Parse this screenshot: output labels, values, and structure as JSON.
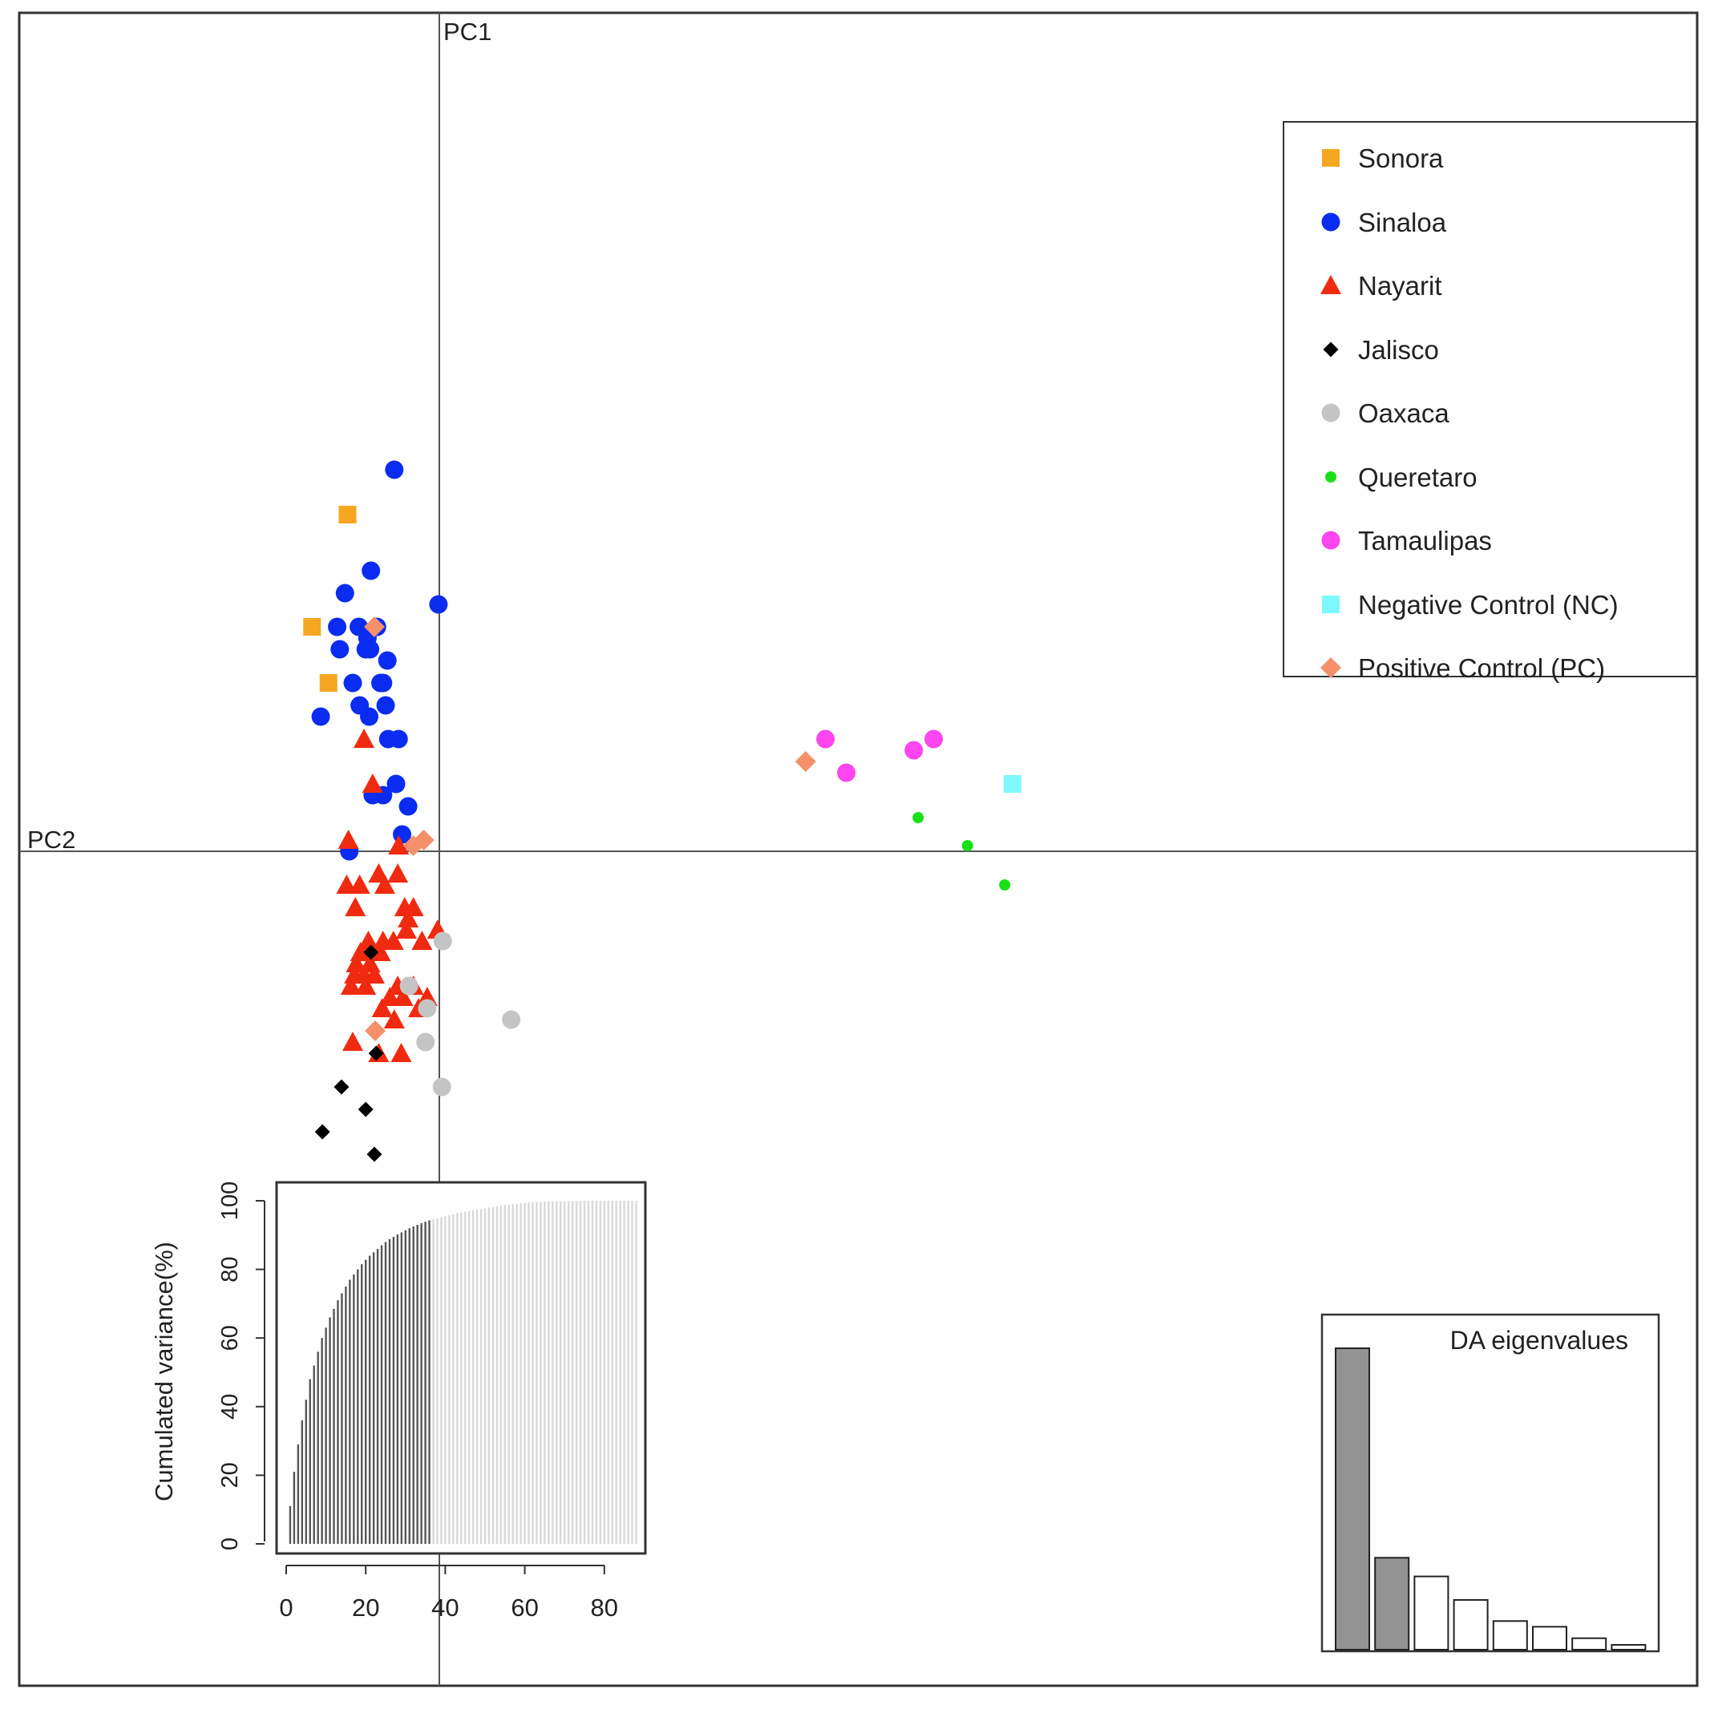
{
  "chart_data": [
    {
      "type": "scatter",
      "title": "",
      "axis_labels": {
        "vertical": "PC1",
        "horizontal": "PC2"
      },
      "legend_position": "top-right",
      "series": [
        {
          "name": "Sonora",
          "color": "#f5a623",
          "marker": "square",
          "points": [
            [
              -10.6,
              3.0
            ],
            [
              -14.7,
              2.0
            ],
            [
              -12.8,
              1.5
            ]
          ]
        },
        {
          "name": "Sinaloa",
          "color": "#0a2cf0",
          "marker": "circle",
          "points": [
            [
              -5.2,
              3.4
            ],
            [
              -7.9,
              2.5
            ],
            [
              -10.9,
              2.3
            ],
            [
              -11.8,
              2.0
            ],
            [
              -9.3,
              2.0
            ],
            [
              -8.5,
              1.8
            ],
            [
              -8.3,
              1.9
            ],
            [
              -7.2,
              2.0
            ],
            [
              -8.0,
              1.8
            ],
            [
              -6.0,
              1.7
            ],
            [
              -6.5,
              1.5
            ],
            [
              -6.8,
              1.5
            ],
            [
              -11.5,
              1.8
            ],
            [
              -10.0,
              1.5
            ],
            [
              -9.2,
              1.3
            ],
            [
              -8.1,
              1.2
            ],
            [
              -6.2,
              1.3
            ],
            [
              -5.9,
              1.0
            ],
            [
              -4.7,
              1.0
            ],
            [
              -13.7,
              1.2
            ],
            [
              -5.0,
              0.6
            ],
            [
              -6.5,
              0.5
            ],
            [
              -7.7,
              0.5
            ],
            [
              -3.6,
              0.4
            ],
            [
              -4.3,
              0.15
            ],
            [
              -0.1,
              2.2
            ],
            [
              -10.4,
              0.0
            ]
          ]
        },
        {
          "name": "Nayarit",
          "color": "#f02a10",
          "marker": "triangle",
          "points": [
            [
              -8.7,
              1.0
            ],
            [
              -7.7,
              0.6
            ],
            [
              -10.5,
              0.1
            ],
            [
              -10.7,
              -0.3
            ],
            [
              -9.2,
              -0.3
            ],
            [
              -7.0,
              -0.2
            ],
            [
              -6.3,
              -0.3
            ],
            [
              -4.7,
              0.05
            ],
            [
              -4.8,
              -0.2
            ],
            [
              -3.8,
              -0.7
            ],
            [
              -4.0,
              -0.5
            ],
            [
              -9.7,
              -0.5
            ],
            [
              -9.1,
              -0.9
            ],
            [
              -8.2,
              -0.8
            ],
            [
              -6.5,
              -0.8
            ],
            [
              -5.3,
              -0.8
            ],
            [
              -2.0,
              -0.8
            ],
            [
              -3.0,
              -0.5
            ],
            [
              -3.6,
              -0.6
            ],
            [
              -6.8,
              -0.9
            ],
            [
              -7.5,
              -1.1
            ],
            [
              -8.0,
              -1.0
            ],
            [
              -8.7,
              -1.1
            ],
            [
              -9.6,
              -1.0
            ],
            [
              -9.8,
              -1.1
            ],
            [
              -10.2,
              -1.2
            ],
            [
              -8.5,
              -1.2
            ],
            [
              -6.6,
              -1.4
            ],
            [
              -5.7,
              -1.3
            ],
            [
              -4.2,
              -1.3
            ],
            [
              -3.0,
              -1.2
            ],
            [
              -2.4,
              -1.4
            ],
            [
              -0.2,
              -0.7
            ],
            [
              -5.2,
              -1.5
            ],
            [
              -1.4,
              -1.3
            ],
            [
              -10.0,
              -1.7
            ],
            [
              -7.0,
              -1.8
            ],
            [
              -4.4,
              -1.8
            ],
            [
              -4.8,
              -1.2
            ]
          ]
        },
        {
          "name": "Jalisco",
          "color": "#000000",
          "marker": "diamond",
          "points": [
            [
              -7.9,
              -0.9
            ],
            [
              -7.3,
              -1.8
            ],
            [
              -11.3,
              -2.1
            ],
            [
              -8.5,
              -2.3
            ],
            [
              -13.5,
              -2.5
            ],
            [
              -7.5,
              -2.7
            ]
          ]
        },
        {
          "name": "Oaxaca",
          "color": "#c4c4c4",
          "marker": "circle",
          "points": [
            [
              0.4,
              -0.8
            ],
            [
              -3.5,
              -1.2
            ],
            [
              -1.4,
              -1.4
            ],
            [
              -1.6,
              -1.7
            ],
            [
              8.3,
              -1.5
            ],
            [
              0.3,
              -2.1
            ]
          ]
        },
        {
          "name": "Queretaro",
          "color": "#18e018",
          "marker": "small-circle",
          "points": [
            [
              55.3,
              0.3
            ],
            [
              61.0,
              0.05
            ],
            [
              65.3,
              -0.3
            ]
          ]
        },
        {
          "name": "Tamaulipas",
          "color": "#ff45ee",
          "marker": "circle",
          "points": [
            [
              44.6,
              1.0
            ],
            [
              47.0,
              0.7
            ],
            [
              54.8,
              0.9
            ],
            [
              57.1,
              1.0
            ]
          ]
        },
        {
          "name": "Negative Control (NC)",
          "color": "#7ff7ff",
          "marker": "square",
          "points": [
            [
              66.2,
              0.6
            ]
          ]
        },
        {
          "name": "Positive Control (PC)",
          "color": "#f5906a",
          "marker": "diamond",
          "points": [
            [
              -7.5,
              2.0
            ],
            [
              -3.0,
              0.05
            ],
            [
              -1.8,
              0.1
            ],
            [
              42.3,
              0.8
            ],
            [
              -7.4,
              -1.6
            ]
          ]
        }
      ]
    },
    {
      "type": "bar",
      "title": "",
      "inset": "bottom-left",
      "xlabel": "",
      "ylabel": "Cumulated variance(%)",
      "xlim": [
        0,
        88
      ],
      "ylim": [
        0,
        100
      ],
      "xticks": [
        "0",
        "20",
        "40",
        "60",
        "80"
      ],
      "yticks": [
        "0",
        "20",
        "40",
        "60",
        "80",
        "100"
      ],
      "retained_components": 36,
      "total_components": 88,
      "retained_color": "#555555",
      "discarded_color": "#d9d9d9",
      "values": [
        11,
        21,
        29,
        36,
        42,
        48,
        52,
        56,
        60,
        63,
        66,
        68.5,
        71,
        73,
        75,
        77,
        78.5,
        80,
        81.5,
        82.8,
        84,
        85,
        86,
        87,
        88,
        88.8,
        89.5,
        90.2,
        90.8,
        91.4,
        92,
        92.5,
        93,
        93.5,
        93.9,
        94.3,
        94.6,
        94.9,
        95.2,
        95.5,
        95.8,
        96.1,
        96.4,
        96.6,
        96.8,
        97,
        97.2,
        97.4,
        97.6,
        97.8,
        98,
        98.2,
        98.4,
        98.6,
        98.8,
        98.95,
        99.1,
        99.2,
        99.3,
        99.4,
        99.5,
        99.6,
        99.65,
        99.7,
        99.75,
        99.8,
        99.85,
        99.9,
        99.92,
        99.94,
        99.96,
        99.97,
        99.98,
        99.99,
        100,
        100,
        100,
        100,
        100,
        100,
        100,
        100,
        100,
        100,
        100,
        100,
        100,
        100
      ]
    },
    {
      "type": "bar",
      "title": "DA eigenvalues",
      "inset": "bottom-right",
      "retained_axes": 2,
      "retained_color": "#939393",
      "values": [
        100,
        30.5,
        24.3,
        16.5,
        9.5,
        7.6,
        3.8,
        1.6
      ]
    }
  ]
}
